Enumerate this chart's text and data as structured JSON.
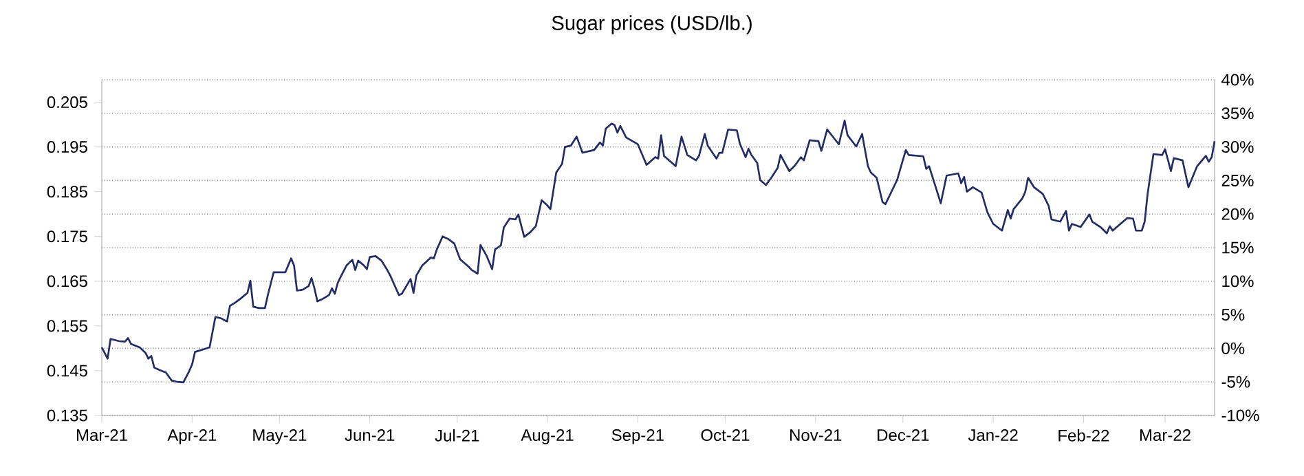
{
  "chart_data": {
    "type": "line",
    "title": "Sugar prices (USD/lb.)",
    "x": [
      "2021-03-01",
      "2021-03-03",
      "2021-03-04",
      "2021-03-07",
      "2021-03-09",
      "2021-03-10",
      "2021-03-11",
      "2021-03-14",
      "2021-03-16",
      "2021-03-17",
      "2021-03-18",
      "2021-03-19",
      "2021-03-21",
      "2021-03-23",
      "2021-03-25",
      "2021-03-27",
      "2021-03-29",
      "2021-03-31",
      "2021-04-01",
      "2021-04-02",
      "2021-04-05",
      "2021-04-07",
      "2021-04-08",
      "2021-04-09",
      "2021-04-11",
      "2021-04-13",
      "2021-04-14",
      "2021-04-16",
      "2021-04-18",
      "2021-04-20",
      "2021-04-21",
      "2021-04-22",
      "2021-04-24",
      "2021-04-26",
      "2021-04-27",
      "2021-04-29",
      "2021-05-03",
      "2021-05-05",
      "2021-05-06",
      "2021-05-07",
      "2021-05-09",
      "2021-05-11",
      "2021-05-12",
      "2021-05-13",
      "2021-05-14",
      "2021-05-16",
      "2021-05-18",
      "2021-05-19",
      "2021-05-20",
      "2021-05-21",
      "2021-05-22",
      "2021-05-24",
      "2021-05-26",
      "2021-05-27",
      "2021-05-28",
      "2021-05-30",
      "2021-05-31",
      "2021-06-01",
      "2021-06-03",
      "2021-06-05",
      "2021-06-07",
      "2021-06-08",
      "2021-06-11",
      "2021-06-12",
      "2021-06-15",
      "2021-06-16",
      "2021-06-17",
      "2021-06-19",
      "2021-06-22",
      "2021-06-23",
      "2021-06-24",
      "2021-06-26",
      "2021-06-28",
      "2021-06-30",
      "2021-07-02",
      "2021-07-05",
      "2021-07-06",
      "2021-07-08",
      "2021-07-09",
      "2021-07-11",
      "2021-07-13",
      "2021-07-14",
      "2021-07-16",
      "2021-07-17",
      "2021-07-19",
      "2021-07-21",
      "2021-07-22",
      "2021-07-24",
      "2021-07-26",
      "2021-07-28",
      "2021-07-30",
      "2021-08-01",
      "2021-08-02",
      "2021-08-04",
      "2021-08-06",
      "2021-08-07",
      "2021-08-09",
      "2021-08-11",
      "2021-08-13",
      "2021-08-17",
      "2021-08-19",
      "2021-08-20",
      "2021-08-21",
      "2021-08-23",
      "2021-08-24",
      "2021-08-25",
      "2021-08-26",
      "2021-08-28",
      "2021-09-01",
      "2021-09-04",
      "2021-09-07",
      "2021-09-08",
      "2021-09-09",
      "2021-09-10",
      "2021-09-14",
      "2021-09-16",
      "2021-09-18",
      "2021-09-21",
      "2021-09-22",
      "2021-09-24",
      "2021-09-25",
      "2021-09-28",
      "2021-09-29",
      "2021-09-30",
      "2021-10-02",
      "2021-10-05",
      "2021-10-06",
      "2021-10-08",
      "2021-10-09",
      "2021-10-10",
      "2021-10-12",
      "2021-10-13",
      "2021-10-15",
      "2021-10-17",
      "2021-10-19",
      "2021-10-20",
      "2021-10-23",
      "2021-10-25",
      "2021-10-27",
      "2021-10-28",
      "2021-10-30",
      "2021-11-02",
      "2021-11-03",
      "2021-11-05",
      "2021-11-09",
      "2021-11-11",
      "2021-11-12",
      "2021-11-15",
      "2021-11-17",
      "2021-11-19",
      "2021-11-20",
      "2021-11-22",
      "2021-11-24",
      "2021-11-25",
      "2021-11-29",
      "2021-12-02",
      "2021-12-03",
      "2021-12-08",
      "2021-12-09",
      "2021-12-10",
      "2021-12-14",
      "2021-12-16",
      "2021-12-20",
      "2021-12-21",
      "2021-12-22",
      "2021-12-23",
      "2021-12-25",
      "2021-12-28",
      "2021-12-30",
      "2022-01-01",
      "2022-01-04",
      "2022-01-06",
      "2022-01-07",
      "2022-01-08",
      "2022-01-11",
      "2022-01-12",
      "2022-01-13",
      "2022-01-15",
      "2022-01-18",
      "2022-01-20",
      "2022-01-21",
      "2022-01-24",
      "2022-01-26",
      "2022-01-27",
      "2022-01-28",
      "2022-01-31",
      "2022-02-03",
      "2022-02-04",
      "2022-02-07",
      "2022-02-09",
      "2022-02-10",
      "2022-02-11",
      "2022-02-16",
      "2022-02-18",
      "2022-02-19",
      "2022-02-21",
      "2022-02-22",
      "2022-02-23",
      "2022-02-25",
      "2022-02-28",
      "2022-03-01",
      "2022-03-03",
      "2022-03-04",
      "2022-03-07",
      "2022-03-09",
      "2022-03-12",
      "2022-03-15",
      "2022-03-16",
      "2022-03-17",
      "2022-03-18"
    ],
    "series": [
      {
        "color": "#232c64",
        "values": [
          0.1502,
          0.1477,
          0.1521,
          0.1516,
          0.1515,
          0.1523,
          0.151,
          0.1502,
          0.149,
          0.1477,
          0.1483,
          0.1457,
          0.1451,
          0.1446,
          0.1428,
          0.1425,
          0.1424,
          0.1449,
          0.1464,
          0.1492,
          0.1498,
          0.1502,
          0.1536,
          0.157,
          0.1567,
          0.156,
          0.1595,
          0.1603,
          0.1613,
          0.1624,
          0.1651,
          0.1593,
          0.159,
          0.159,
          0.1619,
          0.167,
          0.167,
          0.1701,
          0.1685,
          0.1629,
          0.1631,
          0.1639,
          0.1657,
          0.1634,
          0.1605,
          0.1611,
          0.1619,
          0.1634,
          0.1622,
          0.1646,
          0.166,
          0.1685,
          0.1698,
          0.1675,
          0.1696,
          0.1685,
          0.1677,
          0.1704,
          0.1706,
          0.1696,
          0.1675,
          0.1663,
          0.1619,
          0.1622,
          0.1655,
          0.1624,
          0.1663,
          0.1685,
          0.1703,
          0.1701,
          0.1721,
          0.175,
          0.1744,
          0.1734,
          0.1699,
          0.1682,
          0.1675,
          0.1667,
          0.1731,
          0.1708,
          0.1677,
          0.1721,
          0.173,
          0.177,
          0.179,
          0.1788,
          0.1799,
          0.1749,
          0.1759,
          0.1773,
          0.1831,
          0.1819,
          0.1811,
          0.1893,
          0.1912,
          0.195,
          0.1953,
          0.1973,
          0.1937,
          0.1943,
          0.196,
          0.1953,
          0.1991,
          0.2002,
          0.1999,
          0.1982,
          0.1997,
          0.1971,
          0.1956,
          0.191,
          0.1927,
          0.1924,
          0.1976,
          0.193,
          0.1907,
          0.1973,
          0.1932,
          0.192,
          0.193,
          0.1979,
          0.1953,
          0.1924,
          0.1937,
          0.1937,
          0.1989,
          0.1987,
          0.1958,
          0.1927,
          0.1946,
          0.1932,
          0.1914,
          0.1876,
          0.1865,
          0.1883,
          0.1903,
          0.1932,
          0.1896,
          0.1909,
          0.1927,
          0.192,
          0.1965,
          0.1963,
          0.1941,
          0.1989,
          0.1956,
          0.2009,
          0.1976,
          0.1951,
          0.1979,
          0.1907,
          0.1893,
          0.1881,
          0.1827,
          0.1822,
          0.1876,
          0.1943,
          0.1932,
          0.1929,
          0.1901,
          0.1907,
          0.1824,
          0.1886,
          0.1891,
          0.1869,
          0.1883,
          0.185,
          0.186,
          0.1848,
          0.1804,
          0.1778,
          0.1763,
          0.1809,
          0.179,
          0.1811,
          0.1835,
          0.185,
          0.1881,
          0.186,
          0.1845,
          0.1819,
          0.1788,
          0.1783,
          0.1807,
          0.1763,
          0.1778,
          0.1771,
          0.1799,
          0.1783,
          0.177,
          0.1757,
          0.1773,
          0.1763,
          0.1791,
          0.179,
          0.1763,
          0.1763,
          0.1783,
          0.1845,
          0.1934,
          0.1932,
          0.1945,
          0.1896,
          0.1925,
          0.192,
          0.186,
          0.1907,
          0.193,
          0.1917,
          0.1927,
          0.1963
        ]
      }
    ],
    "xlim": [
      "2021-03-01",
      "2022-03-18"
    ],
    "xticks": [
      {
        "value": "2021-03-01",
        "label": "Mar-21"
      },
      {
        "value": "2021-04-01",
        "label": "Apr-21"
      },
      {
        "value": "2021-05-01",
        "label": "May-21"
      },
      {
        "value": "2021-06-01",
        "label": "Jun-21"
      },
      {
        "value": "2021-07-01",
        "label": "Jul-21"
      },
      {
        "value": "2021-08-01",
        "label": "Aug-21"
      },
      {
        "value": "2021-09-01",
        "label": "Sep-21"
      },
      {
        "value": "2021-10-01",
        "label": "Oct-21"
      },
      {
        "value": "2021-11-01",
        "label": "Nov-21"
      },
      {
        "value": "2021-12-01",
        "label": "Dec-21"
      },
      {
        "value": "2022-01-01",
        "label": "Jan-22"
      },
      {
        "value": "2022-02-01",
        "label": "Feb-22"
      },
      {
        "value": "2022-03-01",
        "label": "Mar-22"
      }
    ],
    "ylim": [
      0.135,
      0.21
    ],
    "yticks": [
      0.135,
      0.145,
      0.155,
      0.165,
      0.175,
      0.185,
      0.195,
      0.205
    ],
    "y2lim": [
      -10,
      40
    ],
    "y2ticks": [
      {
        "value": -10,
        "label": "-10%"
      },
      {
        "value": -5,
        "label": "-5%"
      },
      {
        "value": 0,
        "label": "0%"
      },
      {
        "value": 5,
        "label": "5%"
      },
      {
        "value": 10,
        "label": "10%"
      },
      {
        "value": 15,
        "label": "15%"
      },
      {
        "value": 20,
        "label": "20%"
      },
      {
        "value": 25,
        "label": "25%"
      },
      {
        "value": 30,
        "label": "30%"
      },
      {
        "value": 35,
        "label": "35%"
      },
      {
        "value": 40,
        "label": "40%"
      }
    ],
    "grid": true,
    "marker": "none",
    "line_style": "solid"
  }
}
